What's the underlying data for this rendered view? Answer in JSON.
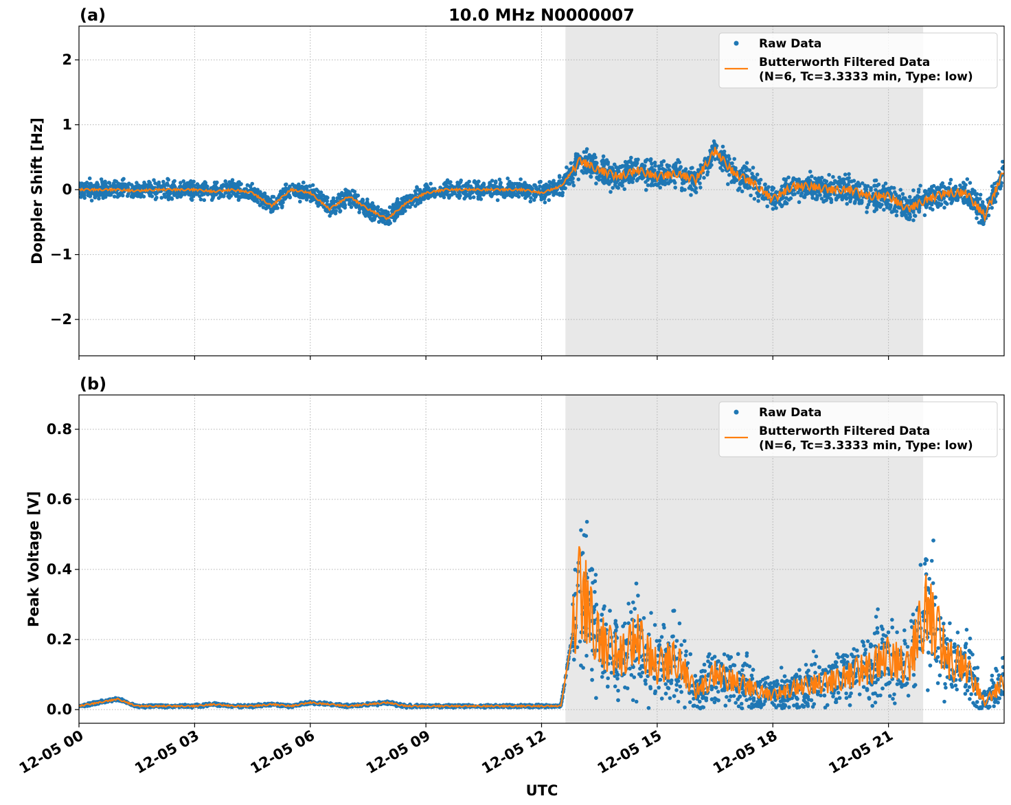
{
  "chart_data": [
    {
      "type": "line",
      "panel_label": "(a)",
      "title": "10.0 MHz N0000007",
      "xlabel": "",
      "ylabel": "Doppler Shift [Hz]",
      "x_unit": "hours since 12-05 00 UTC",
      "xlim": [
        0,
        24
      ],
      "ylim": [
        -2.56,
        2.52
      ],
      "yticks": [
        -2,
        -1,
        0,
        1,
        2
      ],
      "ytick_labels": [
        "−2",
        "−1",
        "0",
        "1",
        "2"
      ],
      "grid": true,
      "legend_placement": "top-right",
      "shaded_span": [
        12.62,
        21.9
      ],
      "x": [
        0,
        0.5,
        1,
        1.5,
        2,
        2.5,
        3,
        3.5,
        4,
        4.5,
        5,
        5.5,
        6,
        6.5,
        7,
        7.5,
        8,
        8.5,
        9,
        9.5,
        10,
        10.5,
        11,
        11.5,
        12,
        12.5,
        13,
        13.5,
        14,
        14.5,
        15,
        15.5,
        16,
        16.5,
        17,
        17.5,
        18,
        18.5,
        19,
        19.5,
        20,
        20.5,
        21,
        21.5,
        22,
        22.5,
        23,
        23.5,
        24
      ],
      "series": [
        {
          "name": "Butterworth Filtered Data\n(N=6, Tc=3.3333 min, Type: low)",
          "color": "#ff7f0e",
          "values": [
            0,
            0,
            0,
            -0.02,
            0,
            0,
            0,
            -0.03,
            0,
            -0.05,
            -0.25,
            0,
            -0.05,
            -0.3,
            -0.1,
            -0.3,
            -0.45,
            -0.2,
            -0.05,
            0,
            0,
            0,
            0,
            0,
            -0.05,
            0.05,
            0.45,
            0.3,
            0.2,
            0.3,
            0.2,
            0.25,
            0.15,
            0.6,
            0.25,
            0.1,
            -0.15,
            0.05,
            0.05,
            0,
            0,
            -0.1,
            -0.1,
            -0.3,
            -0.15,
            -0.05,
            -0.05,
            -0.4,
            0.3
          ]
        },
        {
          "name": "Raw Data",
          "color": "#1f77b4",
          "spread_before_shading": 0.2,
          "spread_after_shading": 0.3
        }
      ]
    },
    {
      "type": "line",
      "panel_label": "(b)",
      "title": "",
      "xlabel": "UTC",
      "ylabel": "Peak Voltage [V]",
      "xlim": [
        0,
        24
      ],
      "ylim": [
        -0.039,
        0.898
      ],
      "yticks": [
        0,
        0.2,
        0.4,
        0.6,
        0.8
      ],
      "ytick_labels": [
        "0.0",
        "0.2",
        "0.4",
        "0.6",
        "0.8"
      ],
      "grid": true,
      "legend_placement": "top-right",
      "shaded_span": [
        12.62,
        21.9
      ],
      "xticks": [
        0,
        3,
        6,
        9,
        12,
        15,
        18,
        21
      ],
      "xtick_labels": [
        "12-05 00",
        "12-05 03",
        "12-05 06",
        "12-05 09",
        "12-05 12",
        "12-05 15",
        "12-05 18",
        "12-05 21"
      ],
      "x": [
        0,
        0.5,
        1,
        1.5,
        2,
        2.5,
        3,
        3.5,
        4,
        4.5,
        5,
        5.5,
        6,
        6.5,
        7,
        7.5,
        8,
        8.5,
        9,
        9.5,
        10,
        10.5,
        11,
        11.5,
        12,
        12.5,
        13,
        13.5,
        14,
        14.5,
        15,
        15.5,
        16,
        16.5,
        17,
        17.5,
        18,
        18.5,
        19,
        19.5,
        20,
        20.5,
        21,
        21.5,
        22,
        22.5,
        23,
        23.5,
        24
      ],
      "series": [
        {
          "name": "Butterworth Filtered Data\n(N=6, Tc=3.3333 min, Type: low)",
          "color": "#ff7f0e",
          "values": [
            0.01,
            0.02,
            0.03,
            0.01,
            0.01,
            0.01,
            0.01,
            0.015,
            0.01,
            0.01,
            0.015,
            0.01,
            0.02,
            0.015,
            0.01,
            0.015,
            0.02,
            0.01,
            0.01,
            0.01,
            0.01,
            0.01,
            0.01,
            0.01,
            0.01,
            0.01,
            0.35,
            0.2,
            0.15,
            0.2,
            0.12,
            0.15,
            0.05,
            0.1,
            0.08,
            0.06,
            0.04,
            0.06,
            0.07,
            0.08,
            0.1,
            0.12,
            0.15,
            0.12,
            0.3,
            0.15,
            0.12,
            0.02,
            0.08
          ]
        },
        {
          "name": "Raw Data",
          "color": "#1f77b4",
          "spread_before_shading": 0.006,
          "spread_after_shading": 0.12
        }
      ]
    }
  ],
  "legend": {
    "raw_label": "Raw Data",
    "filtered_label_line1": "Butterworth Filtered Data",
    "filtered_label_line2": "(N=6, Tc=3.3333 min, Type: low)"
  }
}
